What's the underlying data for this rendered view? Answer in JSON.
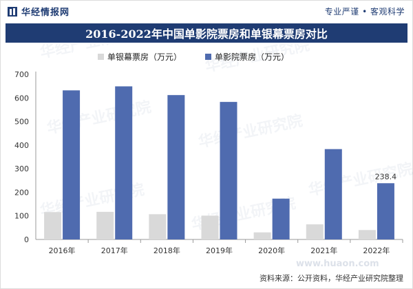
{
  "header": {
    "brand": "华经情报网",
    "slogan": "专业严谨 • 客观科学"
  },
  "watermark": "华经产业研究院",
  "watermark_url": "www.huaon.com",
  "source": "资料来源：公开资料，华经产业研究院整理",
  "colors": {
    "silver": "#d9d9d9",
    "film": "#4f6baf",
    "title_bg": "#1f3c73"
  },
  "chart_data": {
    "type": "bar",
    "title": "2016-2022年中国单影院票房和单银幕票房对比",
    "categories": [
      "2016年",
      "2017年",
      "2018年",
      "2019年",
      "2020年",
      "2021年",
      "2022年"
    ],
    "series": [
      {
        "name": "单银幕票房（万元）",
        "values": [
          116,
          117,
          107,
          101,
          30,
          64,
          40
        ]
      },
      {
        "name": "单影院票房（万元）",
        "values": [
          632,
          649,
          612,
          583,
          173,
          383,
          238.4
        ]
      }
    ],
    "data_labels": [
      {
        "series": 1,
        "index": 6,
        "text": "238.4"
      }
    ],
    "ylim": [
      0,
      700
    ],
    "yticks": [
      0,
      100,
      200,
      300,
      400,
      500,
      600,
      700
    ],
    "legend_position": "top-left",
    "grid": false
  }
}
